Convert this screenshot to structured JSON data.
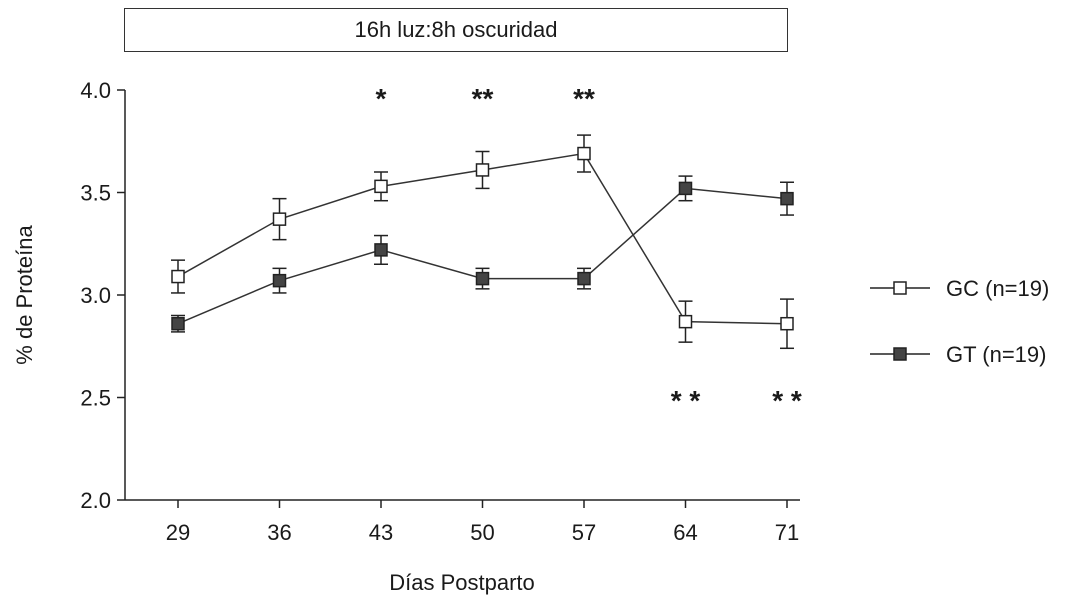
{
  "chart_data": {
    "type": "line",
    "title": "16h luz:8h oscuridad",
    "xlabel": "Días Postparto",
    "ylabel": "% de Proteína",
    "x": [
      29,
      36,
      43,
      50,
      57,
      64,
      71
    ],
    "xlim": [
      29,
      71
    ],
    "ylim": [
      2.0,
      4.0
    ],
    "yticks": [
      "2.0",
      "2.5",
      "3.0",
      "3.5",
      "4.0"
    ],
    "grid": false,
    "legend": "right",
    "series": [
      {
        "name": "GC (n=19)",
        "marker": "open-square",
        "color": "#333333",
        "values": [
          3.09,
          3.37,
          3.53,
          3.61,
          3.69,
          2.87,
          2.86
        ],
        "errors": [
          0.08,
          0.1,
          0.07,
          0.09,
          0.09,
          0.1,
          0.12
        ]
      },
      {
        "name": "GT (n=19)",
        "marker": "filled-square",
        "color": "#333333",
        "values": [
          2.86,
          3.07,
          3.22,
          3.08,
          3.08,
          3.52,
          3.47
        ],
        "errors": [
          0.04,
          0.06,
          0.07,
          0.05,
          0.05,
          0.06,
          0.08
        ]
      }
    ],
    "annotations": [
      {
        "x": 43,
        "text": "*",
        "position": "top"
      },
      {
        "x": 50,
        "text": "**",
        "position": "top"
      },
      {
        "x": 57,
        "text": "**",
        "position": "top"
      },
      {
        "x": 64,
        "text": "* *",
        "position": "bottom"
      },
      {
        "x": 71,
        "text": "* *",
        "position": "bottom"
      }
    ]
  }
}
